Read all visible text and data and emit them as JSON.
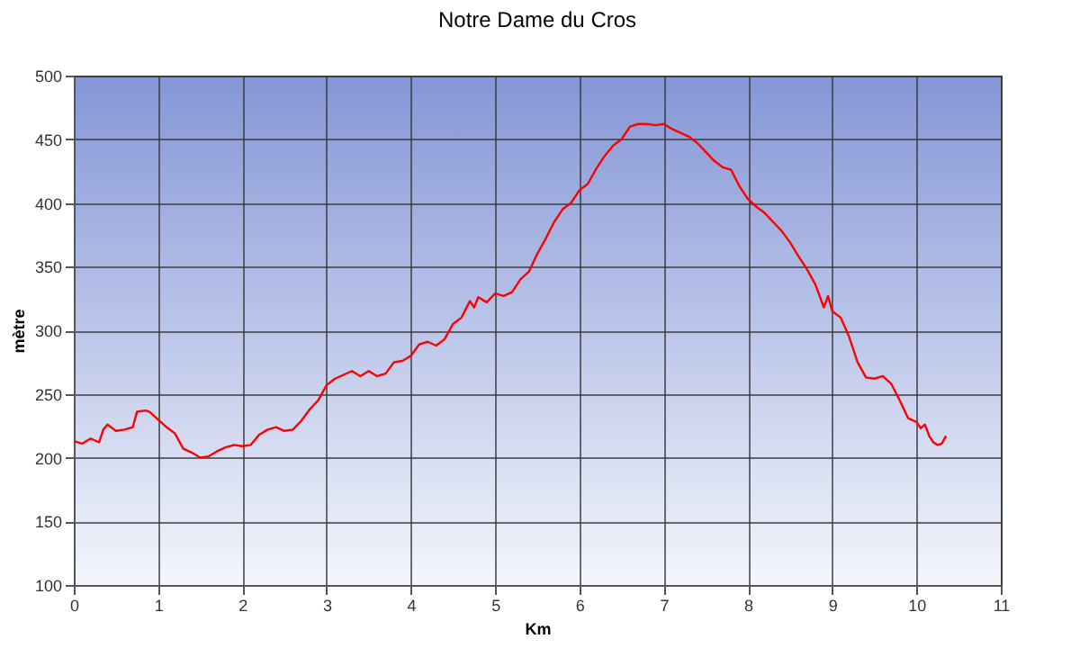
{
  "chart_data": {
    "type": "line",
    "title": "Notre Dame du Cros",
    "xlabel": "Km",
    "ylabel": "mètre",
    "x": [
      0,
      0.1,
      0.2,
      0.3,
      0.35,
      0.4,
      0.5,
      0.6,
      0.7,
      0.75,
      0.85,
      0.9,
      1.0,
      1.1,
      1.2,
      1.3,
      1.4,
      1.5,
      1.6,
      1.7,
      1.8,
      1.9,
      2.0,
      2.1,
      2.2,
      2.3,
      2.4,
      2.5,
      2.6,
      2.7,
      2.8,
      2.9,
      3.0,
      3.1,
      3.2,
      3.3,
      3.4,
      3.5,
      3.6,
      3.7,
      3.8,
      3.9,
      4.0,
      4.1,
      4.2,
      4.3,
      4.4,
      4.5,
      4.6,
      4.7,
      4.75,
      4.8,
      4.9,
      5.0,
      5.1,
      5.2,
      5.3,
      5.4,
      5.5,
      5.6,
      5.7,
      5.8,
      5.9,
      6.0,
      6.1,
      6.2,
      6.3,
      6.4,
      6.5,
      6.6,
      6.7,
      6.8,
      6.9,
      7.0,
      7.1,
      7.2,
      7.3,
      7.4,
      7.5,
      7.6,
      7.7,
      7.8,
      7.9,
      8.0,
      8.1,
      8.2,
      8.3,
      8.4,
      8.5,
      8.6,
      8.7,
      8.8,
      8.9,
      8.95,
      9.0,
      9.1,
      9.2,
      9.3,
      9.4,
      9.5,
      9.6,
      9.7,
      9.8,
      9.9,
      10.0,
      10.05,
      10.1,
      10.15,
      10.2,
      10.25,
      10.3,
      10.35
    ],
    "series": [
      {
        "color": "#ff0000",
        "values": [
          213,
          211,
          215,
          212,
          222,
          226,
          221,
          222,
          224,
          236,
          237,
          236,
          230,
          224,
          219,
          207,
          204,
          200,
          201,
          205,
          208,
          210,
          209,
          210,
          218,
          222,
          224,
          221,
          222,
          229,
          238,
          245,
          257,
          262,
          265,
          268,
          264,
          268,
          264,
          266,
          275,
          276,
          280,
          289,
          291,
          288,
          293,
          305,
          310,
          323,
          318,
          326,
          322,
          329,
          327,
          330,
          340,
          346,
          360,
          372,
          385,
          395,
          400,
          410,
          415,
          427,
          437,
          445,
          450,
          460,
          462,
          462,
          461,
          462,
          458,
          455,
          452,
          447,
          440,
          433,
          428,
          426,
          413,
          403,
          397,
          392,
          385,
          378,
          369,
          358,
          348,
          336,
          318,
          327,
          315,
          310,
          295,
          275,
          263,
          262,
          264,
          258,
          245,
          231,
          228,
          223,
          226,
          217,
          212,
          210,
          211,
          217
        ]
      }
    ],
    "xlim": [
      0,
      11
    ],
    "xticks": [
      0,
      1,
      2,
      3,
      4,
      5,
      6,
      7,
      8,
      9,
      10,
      11
    ],
    "ylim": [
      100,
      500
    ],
    "yticks": [
      100,
      150,
      200,
      250,
      300,
      350,
      400,
      450,
      500
    ],
    "grid": true,
    "marker": "none",
    "line_style": "solid"
  }
}
